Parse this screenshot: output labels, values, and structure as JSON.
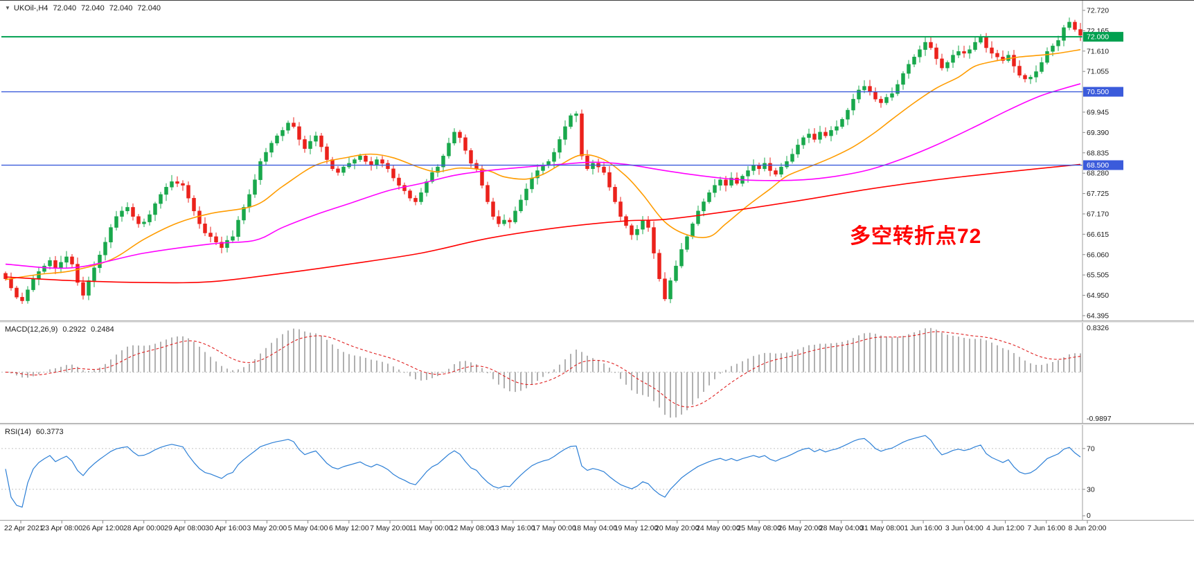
{
  "header": {
    "arrow_glyph": "▼",
    "symbol_period": "UKOil-,H4",
    "open": "72.040",
    "high": "72.040",
    "low": "72.040",
    "close": "72.040"
  },
  "chart_data": [
    {
      "type": "candlestick",
      "title": "UKOil-,H4",
      "symbol": "UKOil-",
      "timeframe": "H4",
      "ohlc_display": [
        "72.040",
        "72.040",
        "72.040",
        "72.040"
      ],
      "grid": false,
      "y_range": [
        64.262,
        72.984
      ],
      "y_axis_labels": [
        "72.720",
        "72.165",
        "71.610",
        "71.055",
        "70.500",
        "69.945",
        "69.390",
        "68.835",
        "68.280",
        "67.725",
        "67.170",
        "66.615",
        "66.060",
        "65.505",
        "64.950",
        "64.395"
      ],
      "x_labels": [
        "22 Apr 2021",
        "23 Apr 08:00",
        "26 Apr 12:00",
        "28 Apr 00:00",
        "29 Apr 08:00",
        "30 Apr 16:00",
        "3 May 20:00",
        "5 May 04:00",
        "6 May 12:00",
        "7 May 20:00",
        "11 May 00:00",
        "12 May 08:00",
        "13 May 16:00",
        "17 May 00:00",
        "18 May 04:00",
        "19 May 12:00",
        "20 May 20:00",
        "24 May 00:00",
        "25 May 08:00",
        "26 May 20:00",
        "28 May 04:00",
        "31 May 08:00",
        "1 Jun 16:00",
        "3 Jun 04:00",
        "4 Jun 12:00",
        "7 Jun 16:00",
        "8 Jun 20:00"
      ],
      "first_open": 65.55,
      "closes": [
        65.4,
        65.15,
        64.9,
        64.8,
        65.1,
        65.4,
        65.6,
        65.75,
        65.9,
        65.7,
        65.85,
        66.0,
        65.8,
        65.3,
        64.95,
        65.35,
        65.7,
        66.05,
        66.4,
        66.8,
        67.1,
        67.25,
        67.35,
        67.1,
        66.9,
        66.95,
        67.15,
        67.45,
        67.7,
        67.9,
        68.05,
        68.0,
        67.95,
        67.6,
        67.25,
        66.9,
        66.65,
        66.55,
        66.4,
        66.25,
        66.45,
        66.55,
        67.0,
        67.35,
        67.7,
        68.1,
        68.6,
        68.85,
        69.1,
        69.3,
        69.45,
        69.65,
        69.55,
        69.2,
        68.95,
        69.15,
        69.3,
        69.0,
        68.65,
        68.4,
        68.3,
        68.45,
        68.55,
        68.65,
        68.75,
        68.6,
        68.5,
        68.65,
        68.55,
        68.4,
        68.15,
        67.95,
        67.8,
        67.6,
        67.5,
        67.75,
        68.05,
        68.3,
        68.45,
        68.75,
        69.1,
        69.4,
        69.25,
        68.9,
        68.55,
        68.4,
        67.95,
        67.5,
        67.1,
        66.9,
        67.0,
        66.95,
        67.25,
        67.55,
        67.85,
        68.15,
        68.35,
        68.5,
        68.6,
        68.85,
        69.2,
        69.55,
        69.85,
        69.9,
        68.75,
        68.4,
        68.55,
        68.45,
        68.3,
        67.9,
        67.5,
        67.1,
        66.85,
        66.6,
        66.75,
        67.0,
        66.8,
        66.1,
        65.4,
        64.85,
        65.35,
        65.75,
        66.2,
        66.55,
        66.9,
        67.25,
        67.5,
        67.75,
        67.95,
        68.1,
        67.95,
        68.15,
        68.0,
        68.2,
        68.35,
        68.5,
        68.4,
        68.55,
        68.35,
        68.25,
        68.45,
        68.6,
        68.8,
        69.05,
        69.25,
        69.35,
        69.2,
        69.4,
        69.3,
        69.45,
        69.55,
        69.75,
        70.0,
        70.3,
        70.55,
        70.65,
        70.5,
        70.3,
        70.2,
        70.35,
        70.45,
        70.7,
        71.0,
        71.25,
        71.45,
        71.65,
        71.85,
        71.7,
        71.4,
        71.15,
        71.3,
        71.5,
        71.6,
        71.55,
        71.65,
        71.85,
        72.0,
        71.7,
        71.55,
        71.45,
        71.35,
        71.5,
        71.2,
        70.95,
        70.85,
        70.9,
        71.05,
        71.3,
        71.6,
        71.75,
        71.9,
        72.25,
        72.4,
        72.2,
        72.04
      ],
      "up_color": "#19A84C",
      "down_color": "#EB221C",
      "moving_averages": [
        {
          "name": "ma-fast-line",
          "color": "#FF9C00",
          "points": [
            [
              0,
              65.38
            ],
            [
              6,
              65.52
            ],
            [
              12,
              65.62
            ],
            [
              19,
              65.92
            ],
            [
              25,
              66.48
            ],
            [
              31,
              66.92
            ],
            [
              37,
              67.18
            ],
            [
              45,
              67.4
            ],
            [
              50,
              67.92
            ],
            [
              56,
              68.5
            ],
            [
              62,
              68.72
            ],
            [
              66,
              68.8
            ],
            [
              70,
              68.7
            ],
            [
              75,
              68.42
            ],
            [
              78,
              68.32
            ],
            [
              82,
              68.42
            ],
            [
              87,
              68.35
            ],
            [
              90,
              68.18
            ],
            [
              94,
              68.12
            ],
            [
              97,
              68.25
            ],
            [
              100,
              68.5
            ],
            [
              104,
              68.78
            ],
            [
              108,
              68.65
            ],
            [
              112,
              68.2
            ],
            [
              115,
              67.7
            ],
            [
              119,
              66.95
            ],
            [
              123,
              66.6
            ],
            [
              127,
              66.55
            ],
            [
              130,
              66.9
            ],
            [
              134,
              67.4
            ],
            [
              138,
              67.85
            ],
            [
              141,
              68.2
            ],
            [
              145,
              68.45
            ],
            [
              149,
              68.7
            ],
            [
              153,
              69.0
            ],
            [
              157,
              69.4
            ],
            [
              160,
              69.75
            ],
            [
              164,
              70.2
            ],
            [
              168,
              70.6
            ],
            [
              172,
              70.9
            ],
            [
              175,
              71.2
            ],
            [
              179,
              71.35
            ],
            [
              183,
              71.45
            ],
            [
              187,
              71.5
            ],
            [
              190,
              71.55
            ],
            [
              194,
              71.65
            ]
          ]
        },
        {
          "name": "ma-mid-line",
          "color": "#FF00FF",
          "points": [
            [
              0,
              65.8
            ],
            [
              12,
              65.7
            ],
            [
              25,
              66.1
            ],
            [
              37,
              66.35
            ],
            [
              45,
              66.45
            ],
            [
              50,
              66.8
            ],
            [
              56,
              67.15
            ],
            [
              62,
              67.45
            ],
            [
              69,
              67.8
            ],
            [
              75,
              68.0
            ],
            [
              81,
              68.22
            ],
            [
              87,
              68.35
            ],
            [
              94,
              68.45
            ],
            [
              100,
              68.52
            ],
            [
              106,
              68.58
            ],
            [
              112,
              68.52
            ],
            [
              119,
              68.35
            ],
            [
              125,
              68.22
            ],
            [
              131,
              68.12
            ],
            [
              137,
              68.08
            ],
            [
              144,
              68.1
            ],
            [
              150,
              68.2
            ],
            [
              156,
              68.38
            ],
            [
              162,
              68.68
            ],
            [
              168,
              69.05
            ],
            [
              175,
              69.55
            ],
            [
              181,
              70.0
            ],
            [
              187,
              70.4
            ],
            [
              194,
              70.72
            ]
          ]
        },
        {
          "name": "ma-slow-line",
          "color": "#FF0000",
          "points": [
            [
              0,
              65.45
            ],
            [
              12,
              65.35
            ],
            [
              25,
              65.3
            ],
            [
              37,
              65.32
            ],
            [
              50,
              65.55
            ],
            [
              62,
              65.8
            ],
            [
              75,
              66.1
            ],
            [
              87,
              66.5
            ],
            [
              100,
              66.8
            ],
            [
              112,
              66.98
            ],
            [
              119,
              67.02
            ],
            [
              131,
              67.25
            ],
            [
              144,
              67.55
            ],
            [
              156,
              67.85
            ],
            [
              168,
              68.1
            ],
            [
              181,
              68.32
            ],
            [
              194,
              68.52
            ]
          ]
        }
      ],
      "horizontal_lines": [
        {
          "price": 72.0,
          "label": "72.000",
          "color": "#00A050",
          "width": 2
        },
        {
          "price": 70.5,
          "label": "70.500",
          "color": "#3B5BDB",
          "width": 1.4
        },
        {
          "price": 68.5,
          "label": "68.500",
          "color": "#3B5BDB",
          "width": 1.4
        }
      ],
      "annotation": {
        "text": "多空转折点72",
        "color": "#FF0000"
      }
    },
    {
      "type": "macd_histogram",
      "label": "MACD(12,26,9)",
      "values_display": [
        "0.2922",
        "0.2484"
      ],
      "params": {
        "fast": 12,
        "slow": 26,
        "signal": 9
      },
      "axis_labels": {
        "max": "0.8326",
        "min": "-0.9897"
      },
      "histogram_color": "#A8A8A8",
      "signal_color": "#E02020"
    },
    {
      "type": "rsi_line",
      "label": "RSI(14)",
      "value_display": "60.3773",
      "period": 14,
      "levels": [
        70,
        30
      ],
      "axis_labels": [
        "70",
        "30",
        "0"
      ],
      "line_color": "#2C7FD6",
      "y_range": [
        0,
        93
      ]
    }
  ]
}
